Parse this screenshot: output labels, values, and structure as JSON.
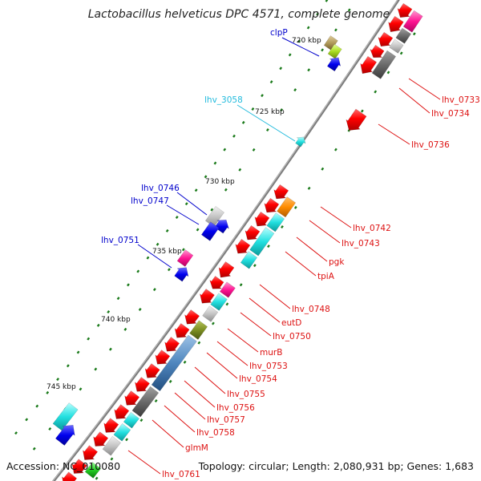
{
  "title": "Lactobacillus helveticus DPC 4571, complete genome",
  "accession": "Accession: NC_010080",
  "topology": "Topology: circular; Length: 2,080,931 bp; Genes: 1,683",
  "colors": {
    "cds": "#ff0000",
    "left_label": "#0000cc",
    "right_label": "#dd1111",
    "cyan_label": "#22bbdd",
    "tick": "#1a7a1a"
  },
  "kbp_labels": [
    "720 kbp",
    "725 kbp",
    "730 kbp",
    "735 kbp",
    "740 kbp",
    "745 kbp"
  ],
  "left_labels": [
    "clpP",
    "lhv_3058",
    "lhv_0746",
    "lhv_0747",
    "lhv_0751"
  ],
  "right_labels": [
    "lhv_0733",
    "lhv_0734",
    "lhv_0736",
    "lhv_0742",
    "lhv_0743",
    "pgk",
    "tpiA",
    "lhv_0748",
    "eutD",
    "lhv_0750",
    "murB",
    "lhv_0753",
    "lhv_0754",
    "lhv_0755",
    "lhv_0756",
    "lhv_0757",
    "lhv_0758",
    "glmM",
    "lhv_0761"
  ]
}
